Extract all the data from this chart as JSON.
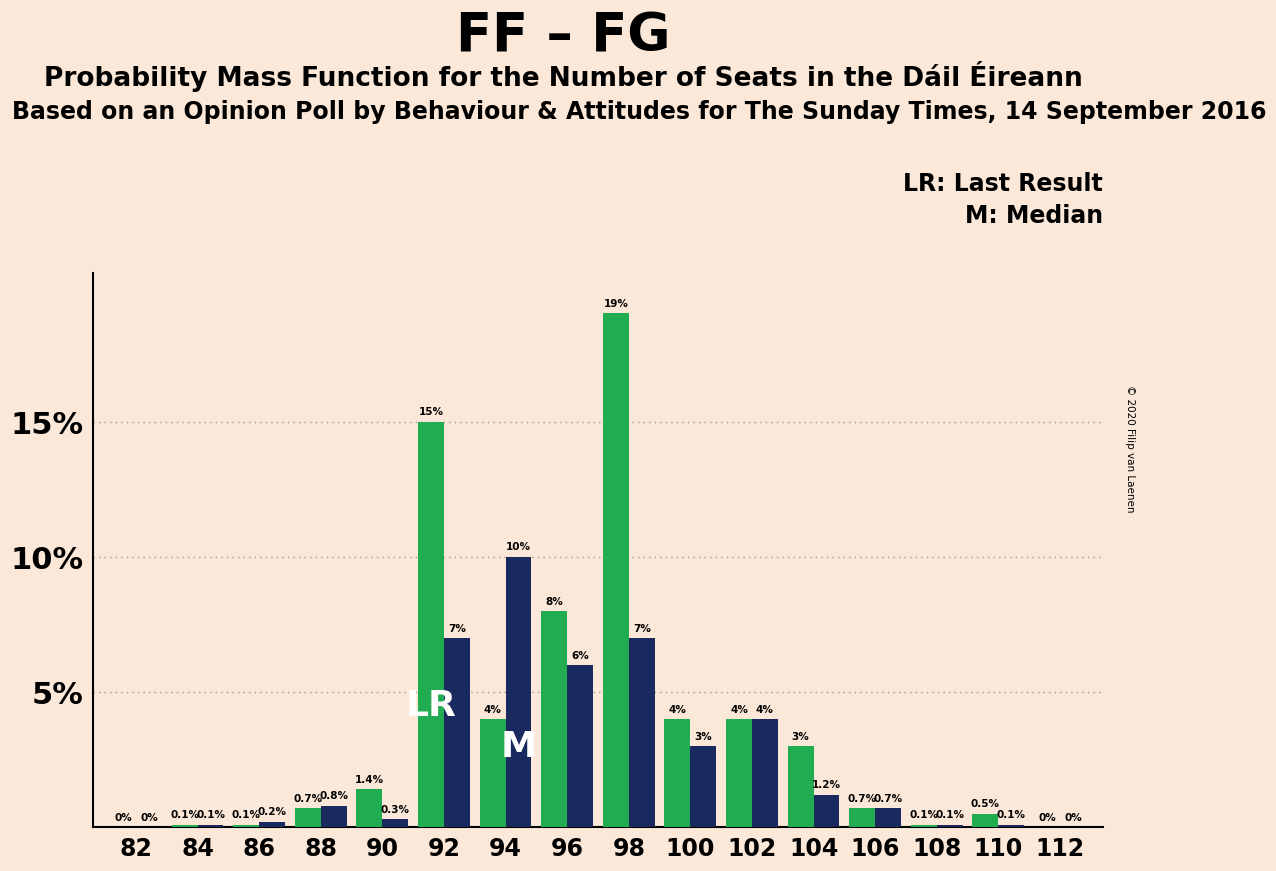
{
  "title": "FF – FG",
  "subtitle": "Probability Mass Function for the Number of Seats in the Dáil Éireann",
  "source": "Based on an Opinion Poll by Behaviour & Attitudes for The Sunday Times, 14 September 2016",
  "copyright": "© 2020 Filip van Laenen",
  "lr_label": "LR: Last Result",
  "m_label": "M: Median",
  "seats": [
    82,
    84,
    86,
    88,
    90,
    92,
    94,
    96,
    98,
    100,
    102,
    104,
    106,
    108,
    110,
    112
  ],
  "green_values": [
    0.0,
    0.1,
    0.1,
    0.7,
    1.4,
    15.0,
    4.0,
    8.0,
    19.0,
    4.0,
    4.0,
    3.0,
    0.7,
    0.1,
    0.5,
    0.0
  ],
  "navy_values": [
    0.0,
    0.1,
    0.2,
    0.8,
    0.3,
    7.0,
    10.0,
    6.0,
    7.0,
    3.0,
    4.0,
    1.2,
    0.7,
    0.1,
    0.1,
    0.0
  ],
  "green_labels": [
    "0%",
    "0.1%",
    "0.1%",
    "0.7%",
    "1.4%",
    "15%",
    "4%",
    "8%",
    "19%",
    "4%",
    "4%",
    "3%",
    "0.7%",
    "0.1%",
    "0.5%",
    "0%"
  ],
  "navy_labels": [
    "0%",
    "0.1%",
    "0.2%",
    "0.8%",
    "0.3%",
    "7%",
    "10%",
    "6%",
    "7%",
    "3%",
    "4%",
    "1.2%",
    "0.7%",
    "0.1%",
    "0.1%",
    "0%"
  ],
  "lr_seat_idx": 5,
  "m_seat_idx": 6,
  "green_color": "#22ac52",
  "navy_color": "#1a2a5e",
  "background_color": "#fce8d8",
  "ylim": [
    0,
    20.5
  ],
  "title_fontsize": 38,
  "subtitle_fontsize": 19,
  "source_fontsize": 17,
  "legend_fontsize": 17
}
